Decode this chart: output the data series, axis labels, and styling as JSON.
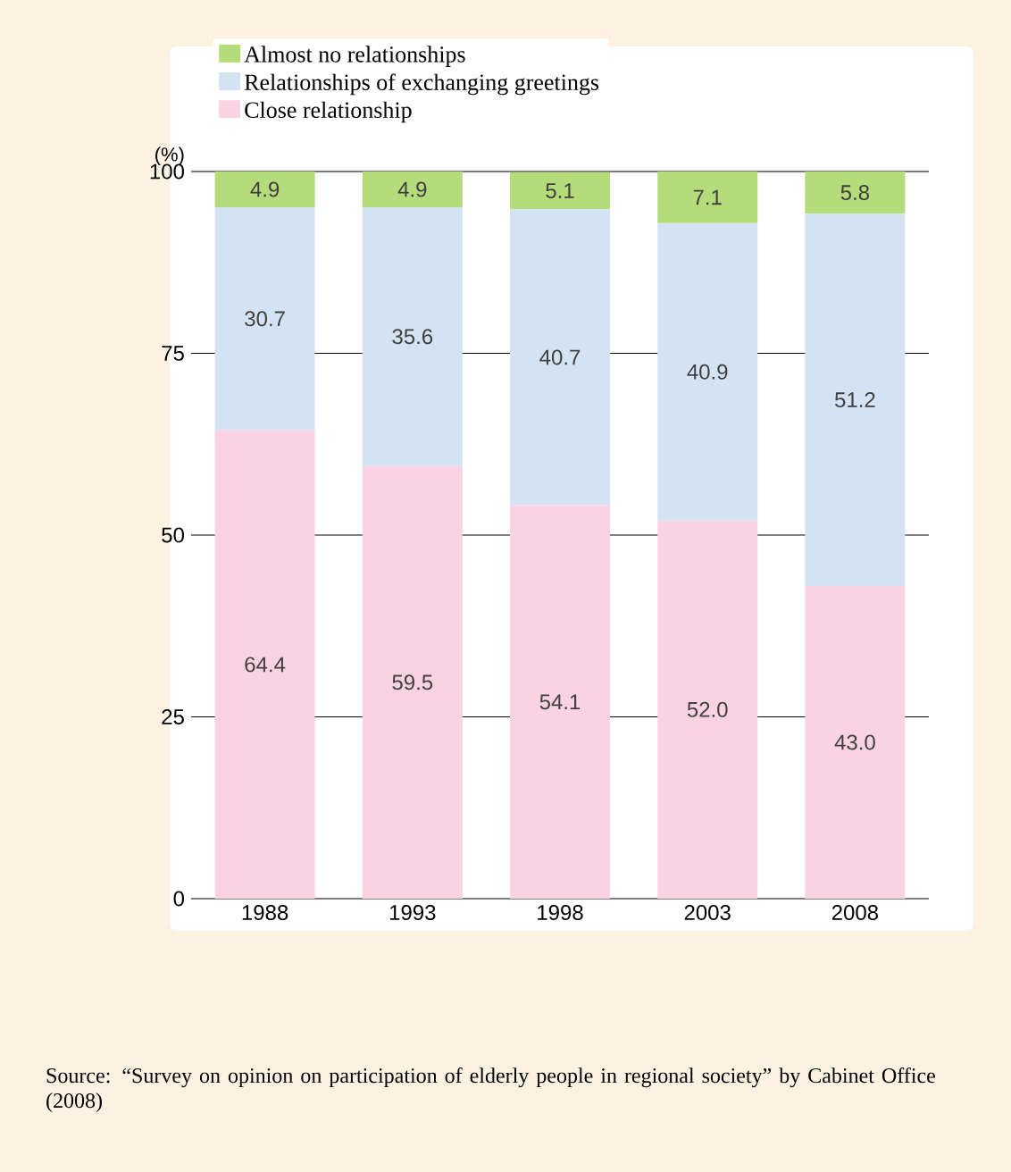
{
  "chart_data": {
    "type": "bar",
    "stacked": true,
    "ylabel": "(%)",
    "categories": [
      "1988",
      "1993",
      "1998",
      "2003",
      "2008"
    ],
    "series": [
      {
        "name": "Close relationship",
        "color": "#f9d3e2",
        "values": [
          64.4,
          59.5,
          54.1,
          52.0,
          43.0
        ],
        "value_labels": [
          "64.4",
          "59.5",
          "54.1",
          "52.0",
          "43.0"
        ]
      },
      {
        "name": "Relationships of exchanging greetings",
        "color": "#d3e3f3",
        "values": [
          30.7,
          35.6,
          40.7,
          40.9,
          51.2
        ],
        "value_labels": [
          "30.7",
          "35.6",
          "40.7",
          "40.9",
          "51.2"
        ]
      },
      {
        "name": "Almost no relationships",
        "color": "#b5dc7a",
        "values": [
          4.9,
          4.9,
          5.1,
          7.1,
          5.8
        ],
        "value_labels": [
          "4.9",
          "4.9",
          "5.1",
          "7.1",
          "5.8"
        ]
      }
    ],
    "ylim": [
      0,
      100
    ],
    "yticks": [
      0,
      25,
      50,
      75,
      100
    ],
    "grid": "y",
    "legend": "top",
    "annotations": [
      "Source: “Survey on opinion on participation of elderly people in regional society” by Cabinet Office (2008)"
    ]
  }
}
